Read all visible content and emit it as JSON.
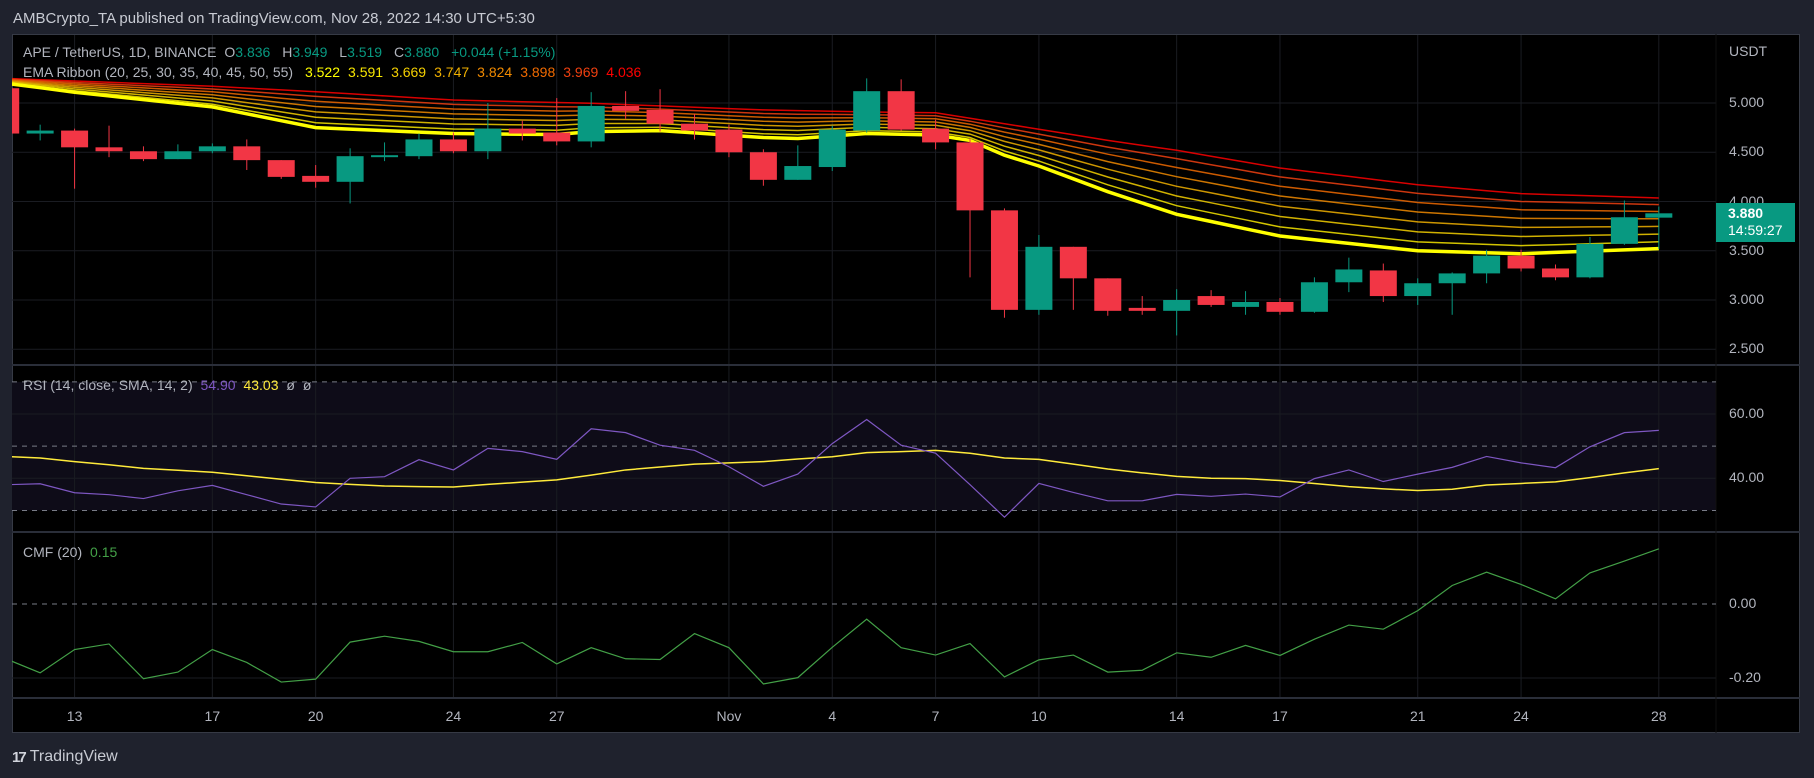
{
  "header": {
    "published_text": "AMBCrypto_TA published on TradingView.com, Nov 28, 2022 14:30 UTC+5:30"
  },
  "legend": {
    "symbol": "APE / TetherUS, 1D, BINANCE",
    "open_label": "O",
    "open": "3.836",
    "high_label": "H",
    "high": "3.949",
    "low_label": "L",
    "low": "3.519",
    "close_label": "C",
    "close": "3.880",
    "change": "+0.044 (+1.15%)"
  },
  "ema_ribbon": {
    "label": "EMA Ribbon (20, 25, 30, 35, 40, 45, 50, 55)",
    "values": [
      "3.522",
      "3.591",
      "3.669",
      "3.747",
      "3.824",
      "3.898",
      "3.969",
      "4.036"
    ],
    "colors": [
      "#ffff00",
      "#f7e600",
      "#f5d000",
      "#f0b000",
      "#f08a00",
      "#f06a00",
      "#f04010",
      "#ff0000"
    ]
  },
  "rsi": {
    "label": "RSI (14, close, SMA, 14, 2)",
    "value": "54.90",
    "sma_value": "43.03",
    "extra1": "ø",
    "extra2": "ø",
    "line_color": "#7e57c2",
    "sma_color": "#ffeb3b",
    "ticks": [
      "60.00",
      "40.00"
    ]
  },
  "cmf": {
    "label": "CMF (20)",
    "value": "0.15",
    "line_color": "#43a047",
    "ticks": [
      "0.00",
      "-0.20"
    ]
  },
  "price_axis": {
    "currency": "USDT",
    "ticks": [
      "5.000",
      "4.500",
      "4.000",
      "3.500",
      "3.000",
      "2.500"
    ]
  },
  "last_price": {
    "price": "3.880",
    "countdown": "14:59:27",
    "color": "#089981"
  },
  "time_axis": {
    "labels": [
      "13",
      "17",
      "20",
      "24",
      "27",
      "Nov",
      "4",
      "7",
      "10",
      "14",
      "17",
      "21",
      "24",
      "28"
    ]
  },
  "footer": {
    "logo_text": "TradingView"
  },
  "colors": {
    "up": "#089981",
    "down": "#f23645"
  },
  "chart_data": {
    "type": "candlestick",
    "candles_format": [
      "date",
      "open",
      "high",
      "low",
      "close"
    ],
    "candles": [
      [
        "Oct 11",
        5.15,
        5.2,
        4.68,
        4.69
      ],
      [
        "Oct 12",
        4.69,
        4.78,
        4.62,
        4.72
      ],
      [
        "Oct 13",
        4.72,
        4.74,
        4.13,
        4.55
      ],
      [
        "Oct 14",
        4.55,
        4.77,
        4.45,
        4.51
      ],
      [
        "Oct 15",
        4.51,
        4.56,
        4.41,
        4.43
      ],
      [
        "Oct 16",
        4.43,
        4.58,
        4.43,
        4.51
      ],
      [
        "Oct 17",
        4.51,
        4.59,
        4.49,
        4.56
      ],
      [
        "Oct 18",
        4.56,
        4.63,
        4.32,
        4.42
      ],
      [
        "Oct 19",
        4.42,
        4.42,
        4.23,
        4.25
      ],
      [
        "Oct 20",
        4.26,
        4.37,
        4.14,
        4.2
      ],
      [
        "Oct 21",
        4.2,
        4.54,
        3.98,
        4.46
      ],
      [
        "Oct 22",
        4.45,
        4.6,
        4.41,
        4.47
      ],
      [
        "Oct 23",
        4.46,
        4.69,
        4.43,
        4.63
      ],
      [
        "Oct 24",
        4.63,
        4.7,
        4.49,
        4.51
      ],
      [
        "Oct 25",
        4.51,
        5.0,
        4.43,
        4.74
      ],
      [
        "Oct 26",
        4.74,
        4.82,
        4.62,
        4.69
      ],
      [
        "Oct 27",
        4.7,
        5.05,
        4.57,
        4.61
      ],
      [
        "Oct 28",
        4.61,
        5.11,
        4.55,
        4.97
      ],
      [
        "Oct 29",
        4.97,
        5.12,
        4.84,
        4.92
      ],
      [
        "Oct 30",
        4.93,
        5.14,
        4.71,
        4.79
      ],
      [
        "Oct 31",
        4.79,
        4.89,
        4.63,
        4.72
      ],
      [
        "Nov 1",
        4.73,
        4.78,
        4.45,
        4.5
      ],
      [
        "Nov 2",
        4.5,
        4.53,
        4.16,
        4.22
      ],
      [
        "Nov 3",
        4.22,
        4.57,
        4.22,
        4.36
      ],
      [
        "Nov 4",
        4.35,
        4.77,
        4.31,
        4.73
      ],
      [
        "Nov 5",
        4.72,
        5.25,
        4.7,
        5.12
      ],
      [
        "Nov 6",
        5.12,
        5.24,
        4.72,
        4.73
      ],
      [
        "Nov 7",
        4.74,
        4.83,
        4.53,
        4.6
      ],
      [
        "Nov 8",
        4.6,
        4.64,
        3.23,
        3.91
      ],
      [
        "Nov 9",
        3.91,
        3.93,
        2.82,
        2.9
      ],
      [
        "Nov 10",
        2.9,
        3.66,
        2.85,
        3.54
      ],
      [
        "Nov 11",
        3.54,
        3.54,
        2.9,
        3.22
      ],
      [
        "Nov 12",
        3.22,
        3.22,
        2.84,
        2.89
      ],
      [
        "Nov 13",
        2.92,
        3.04,
        2.85,
        2.89
      ],
      [
        "Nov 14",
        2.89,
        3.11,
        2.64,
        3.0
      ],
      [
        "Nov 15",
        3.04,
        3.1,
        2.93,
        2.95
      ],
      [
        "Nov 16",
        2.93,
        3.09,
        2.85,
        2.98
      ],
      [
        "Nov 17",
        2.98,
        3.02,
        2.85,
        2.88
      ],
      [
        "Nov 18",
        2.88,
        3.23,
        2.87,
        3.18
      ],
      [
        "Nov 19",
        3.18,
        3.43,
        3.08,
        3.31
      ],
      [
        "Nov 20",
        3.3,
        3.37,
        2.98,
        3.04
      ],
      [
        "Nov 21",
        3.04,
        3.22,
        2.95,
        3.17
      ],
      [
        "Nov 22",
        3.17,
        3.28,
        2.85,
        3.27
      ],
      [
        "Nov 23",
        3.27,
        3.51,
        3.17,
        3.45
      ],
      [
        "Nov 24",
        3.45,
        3.51,
        3.29,
        3.32
      ],
      [
        "Nov 25",
        3.32,
        3.36,
        3.2,
        3.23
      ],
      [
        "Nov 26",
        3.23,
        3.64,
        3.22,
        3.57
      ],
      [
        "Nov 27",
        3.57,
        4.01,
        3.56,
        3.84
      ],
      [
        "Nov 28",
        3.836,
        3.949,
        3.519,
        3.88
      ]
    ],
    "ema20": [
      [
        "Oct 11",
        5.2
      ],
      [
        "Oct 13",
        5.11
      ],
      [
        "Oct 17",
        4.96
      ],
      [
        "Oct 20",
        4.75
      ],
      [
        "Oct 24",
        4.69
      ],
      [
        "Oct 27",
        4.68
      ],
      [
        "Oct 28",
        4.71
      ],
      [
        "Oct 30",
        4.72
      ],
      [
        "Nov 2",
        4.65
      ],
      [
        "Nov 3",
        4.64
      ],
      [
        "Nov 5",
        4.69
      ],
      [
        "Nov 7",
        4.675
      ],
      [
        "Nov 8",
        4.62
      ],
      [
        "Nov 9",
        4.47
      ],
      [
        "Nov 10",
        4.36
      ],
      [
        "Nov 12",
        4.1
      ],
      [
        "Nov 14",
        3.87
      ],
      [
        "Nov 17",
        3.65
      ],
      [
        "Nov 21",
        3.5
      ],
      [
        "Nov 24",
        3.47
      ],
      [
        "Nov 28",
        3.522
      ]
    ],
    "ema55": [
      [
        "Oct 11",
        5.25
      ],
      [
        "Oct 17",
        5.17
      ],
      [
        "Oct 20",
        5.115
      ],
      [
        "Oct 24",
        5.03
      ],
      [
        "Oct 28",
        4.997
      ],
      [
        "Nov 2",
        4.93
      ],
      [
        "Nov 5",
        4.91
      ],
      [
        "Nov 7",
        4.9
      ],
      [
        "Nov 9",
        4.79
      ],
      [
        "Nov 12",
        4.62
      ],
      [
        "Nov 14",
        4.52
      ],
      [
        "Nov 17",
        4.34
      ],
      [
        "Nov 21",
        4.17
      ],
      [
        "Nov 24",
        4.08
      ],
      [
        "Nov 28",
        4.036
      ]
    ],
    "rsi": [
      38.0,
      38.3,
      35.5,
      34.9,
      33.7,
      36.1,
      37.8,
      34.9,
      32.0,
      31.1,
      40.0,
      40.5,
      45.8,
      42.6,
      49.3,
      48.3,
      45.9,
      55.4,
      54.2,
      50.3,
      48.7,
      43.6,
      37.5,
      41.3,
      50.8,
      58.3,
      50.3,
      47.8,
      38.0,
      27.9,
      38.4,
      35.6,
      33.0,
      33.0,
      35.0,
      34.4,
      35.1,
      34.2,
      39.9,
      42.6,
      39.0,
      41.3,
      43.4,
      46.8,
      44.8,
      43.3,
      49.8,
      54.2,
      54.9
    ],
    "rsi_sma": [
      46.8,
      46.3,
      45.2,
      44.2,
      43.1,
      42.5,
      41.9,
      40.8,
      39.7,
      38.7,
      38.1,
      37.6,
      37.4,
      37.3,
      38.1,
      38.8,
      39.5,
      41.0,
      42.6,
      43.5,
      44.4,
      44.8,
      45.2,
      46.0,
      46.7,
      48.0,
      48.3,
      48.7,
      47.8,
      46.3,
      45.9,
      44.4,
      42.9,
      41.7,
      40.6,
      40.0,
      39.9,
      39.3,
      38.4,
      37.4,
      36.7,
      36.2,
      36.6,
      37.9,
      38.4,
      38.9,
      40.2,
      41.7,
      43.0
    ],
    "rsi_levels": [
      70,
      50,
      30
    ],
    "cmf": [
      -0.148,
      -0.186,
      -0.123,
      -0.108,
      -0.202,
      -0.184,
      -0.123,
      -0.158,
      -0.211,
      -0.203,
      -0.103,
      -0.087,
      -0.101,
      -0.129,
      -0.129,
      -0.104,
      -0.162,
      -0.118,
      -0.148,
      -0.15,
      -0.08,
      -0.118,
      -0.216,
      -0.199,
      -0.117,
      -0.041,
      -0.118,
      -0.138,
      -0.107,
      -0.197,
      -0.151,
      -0.138,
      -0.184,
      -0.179,
      -0.132,
      -0.144,
      -0.112,
      -0.139,
      -0.095,
      -0.057,
      -0.068,
      -0.018,
      0.05,
      0.086,
      0.053,
      0.014,
      0.084,
      0.116,
      0.149
    ],
    "time_label_dates": [
      "Oct 13",
      "Oct 17",
      "Oct 20",
      "Oct 24",
      "Oct 27",
      "Nov 1",
      "Nov 4",
      "Nov 7",
      "Nov 10",
      "Nov 14",
      "Nov 17",
      "Nov 21",
      "Nov 24",
      "Nov 28"
    ],
    "price_range": [
      2.35,
      5.35
    ]
  }
}
